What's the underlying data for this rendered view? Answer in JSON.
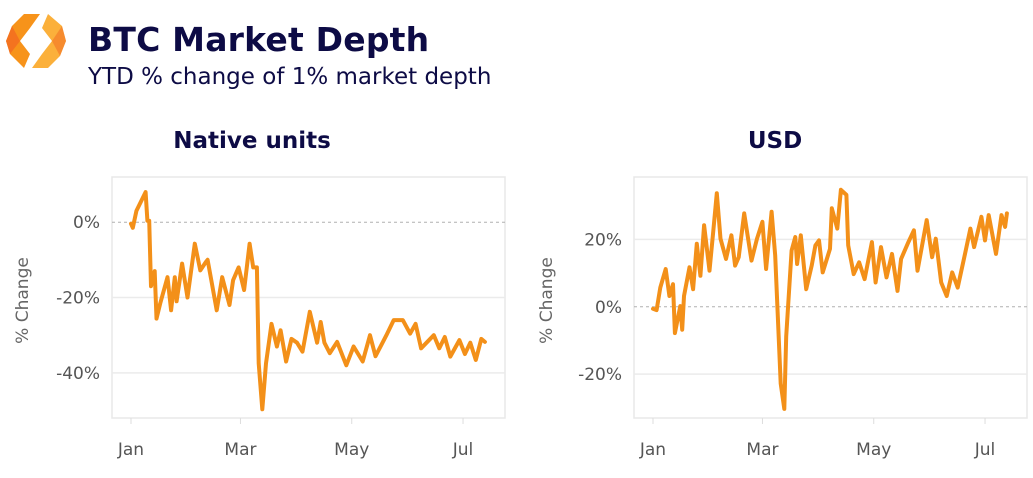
{
  "header": {
    "title": "BTC Market Depth",
    "subtitle": "YTD % change of 1% market depth",
    "logo_colors": [
      "#f7931a",
      "#fbb03b",
      "#f26522"
    ]
  },
  "colors": {
    "title": "#0d0b45",
    "line": "#f39019",
    "grid": "#ebebeb",
    "zero_line": "#b0b0b0"
  },
  "chart_data": [
    {
      "type": "line",
      "title": "Native units",
      "ylabel": "% Change",
      "xlabel": "",
      "x_tick_labels": [
        "Jan",
        "Mar",
        "May",
        "Jul"
      ],
      "x_ticks": [
        "01-01",
        "03-01",
        "05-01",
        "07-01"
      ],
      "y_tick_values": [
        0,
        -20,
        -40
      ],
      "y_tick_labels": [
        "0%",
        "-20%",
        "-40%"
      ],
      "ylim": [
        -52,
        12
      ],
      "grid": true,
      "zero_line": "dashed",
      "x": [
        "01-01",
        "01-02",
        "01-04",
        "01-09",
        "01-10",
        "01-11",
        "01-12",
        "01-14",
        "01-15",
        "01-17",
        "01-21",
        "01-23",
        "01-25",
        "01-26",
        "01-29",
        "02-01",
        "02-05",
        "02-08",
        "02-11",
        "02-12",
        "02-14",
        "02-17",
        "02-20",
        "02-24",
        "02-26",
        "02-29",
        "03-03",
        "03-06",
        "03-08",
        "03-10",
        "03-11",
        "03-13",
        "03-15",
        "03-18",
        "03-21",
        "03-23",
        "03-26",
        "03-29",
        "04-01",
        "04-04",
        "04-08",
        "04-12",
        "04-14",
        "04-16",
        "04-19",
        "04-23",
        "04-28",
        "05-02",
        "05-07",
        "05-11",
        "05-14",
        "05-20",
        "05-24",
        "05-29",
        "06-02",
        "06-05",
        "06-08",
        "06-15",
        "06-18",
        "06-21",
        "06-24",
        "06-29",
        "07-02",
        "07-05",
        "07-08",
        "07-11",
        "07-13"
      ],
      "y": [
        -0.4,
        -1.5,
        3,
        8,
        0.4,
        0.4,
        -17,
        -13,
        -25.6,
        -21.6,
        -14.6,
        -23.4,
        -14.6,
        -21,
        -11,
        -20,
        -5.7,
        -12.8,
        -10.6,
        -10,
        -15.4,
        -23.4,
        -14.6,
        -22,
        -15.4,
        -12,
        -18,
        -5.7,
        -12,
        -12,
        -37.5,
        -49.7,
        -37.5,
        -27,
        -33,
        -28.7,
        -37,
        -31,
        -32,
        -34.4,
        -23.8,
        -32,
        -26.5,
        -32,
        -34.8,
        -31.8,
        -38,
        -33,
        -37,
        -30,
        -35.6,
        -30,
        -26,
        -26,
        -29.6,
        -27,
        -33.5,
        -30,
        -33.5,
        -30.5,
        -35.7,
        -31.3,
        -35,
        -32,
        -36.6,
        -31,
        -31.8
      ]
    },
    {
      "type": "line",
      "title": "USD",
      "ylabel": "% Change",
      "xlabel": "",
      "x_tick_labels": [
        "Jan",
        "Mar",
        "May",
        "Jul"
      ],
      "x_ticks": [
        "01-01",
        "03-01",
        "05-01",
        "07-01"
      ],
      "y_tick_values": [
        20,
        0,
        -20
      ],
      "y_tick_labels": [
        "20%",
        "0%",
        "-20%"
      ],
      "ylim": [
        -33,
        38.5
      ],
      "grid": true,
      "zero_line": "dashed",
      "x": [
        "01-01",
        "01-03",
        "01-05",
        "01-08",
        "01-10",
        "01-12",
        "01-13",
        "01-16",
        "01-17",
        "01-18",
        "01-21",
        "01-23",
        "01-25",
        "01-27",
        "01-29",
        "02-01",
        "02-03",
        "02-05",
        "02-07",
        "02-10",
        "02-13",
        "02-15",
        "02-17",
        "02-20",
        "02-24",
        "02-27",
        "03-01",
        "03-03",
        "03-06",
        "03-08",
        "03-11",
        "03-13",
        "03-14",
        "03-17",
        "03-19",
        "03-20",
        "03-22",
        "03-25",
        "03-28",
        "03-30",
        "04-01",
        "04-03",
        "04-07",
        "04-08",
        "04-11",
        "04-13",
        "04-16",
        "04-17",
        "04-20",
        "04-23",
        "04-26",
        "04-30",
        "05-02",
        "05-05",
        "05-08",
        "05-11",
        "05-14",
        "05-16",
        "05-20",
        "05-23",
        "05-25",
        "05-30",
        "06-02",
        "06-04",
        "06-07",
        "06-10",
        "06-13",
        "06-16",
        "06-20",
        "06-23",
        "06-25",
        "06-29",
        "07-01",
        "07-03",
        "07-07",
        "07-10",
        "07-12",
        "07-13"
      ],
      "y": [
        -0.6,
        -1,
        5.7,
        11.2,
        3.2,
        6.7,
        -7.8,
        0.2,
        -6.8,
        3.2,
        11.7,
        5.2,
        18.7,
        9.2,
        24.2,
        10.7,
        22.2,
        33.7,
        20.2,
        14.2,
        21.2,
        12.2,
        14.7,
        27.7,
        13.7,
        20.2,
        25.2,
        11.2,
        28.2,
        15.2,
        -22.8,
        -30.3,
        -8.8,
        16.7,
        20.7,
        12.7,
        21.2,
        5.2,
        12.2,
        18.2,
        19.7,
        10.2,
        17.2,
        29.2,
        23.2,
        34.7,
        33.2,
        18.2,
        9.7,
        13.2,
        8.2,
        19.2,
        7.2,
        17.7,
        8.7,
        15.7,
        4.7,
        14.2,
        19.2,
        22.7,
        10.7,
        25.7,
        14.7,
        20.2,
        7.2,
        3.2,
        10.2,
        5.7,
        15.7,
        23.2,
        17.7,
        26.7,
        19.7,
        27.2,
        15.7,
        27.2,
        23.7,
        27.7
      ]
    }
  ]
}
